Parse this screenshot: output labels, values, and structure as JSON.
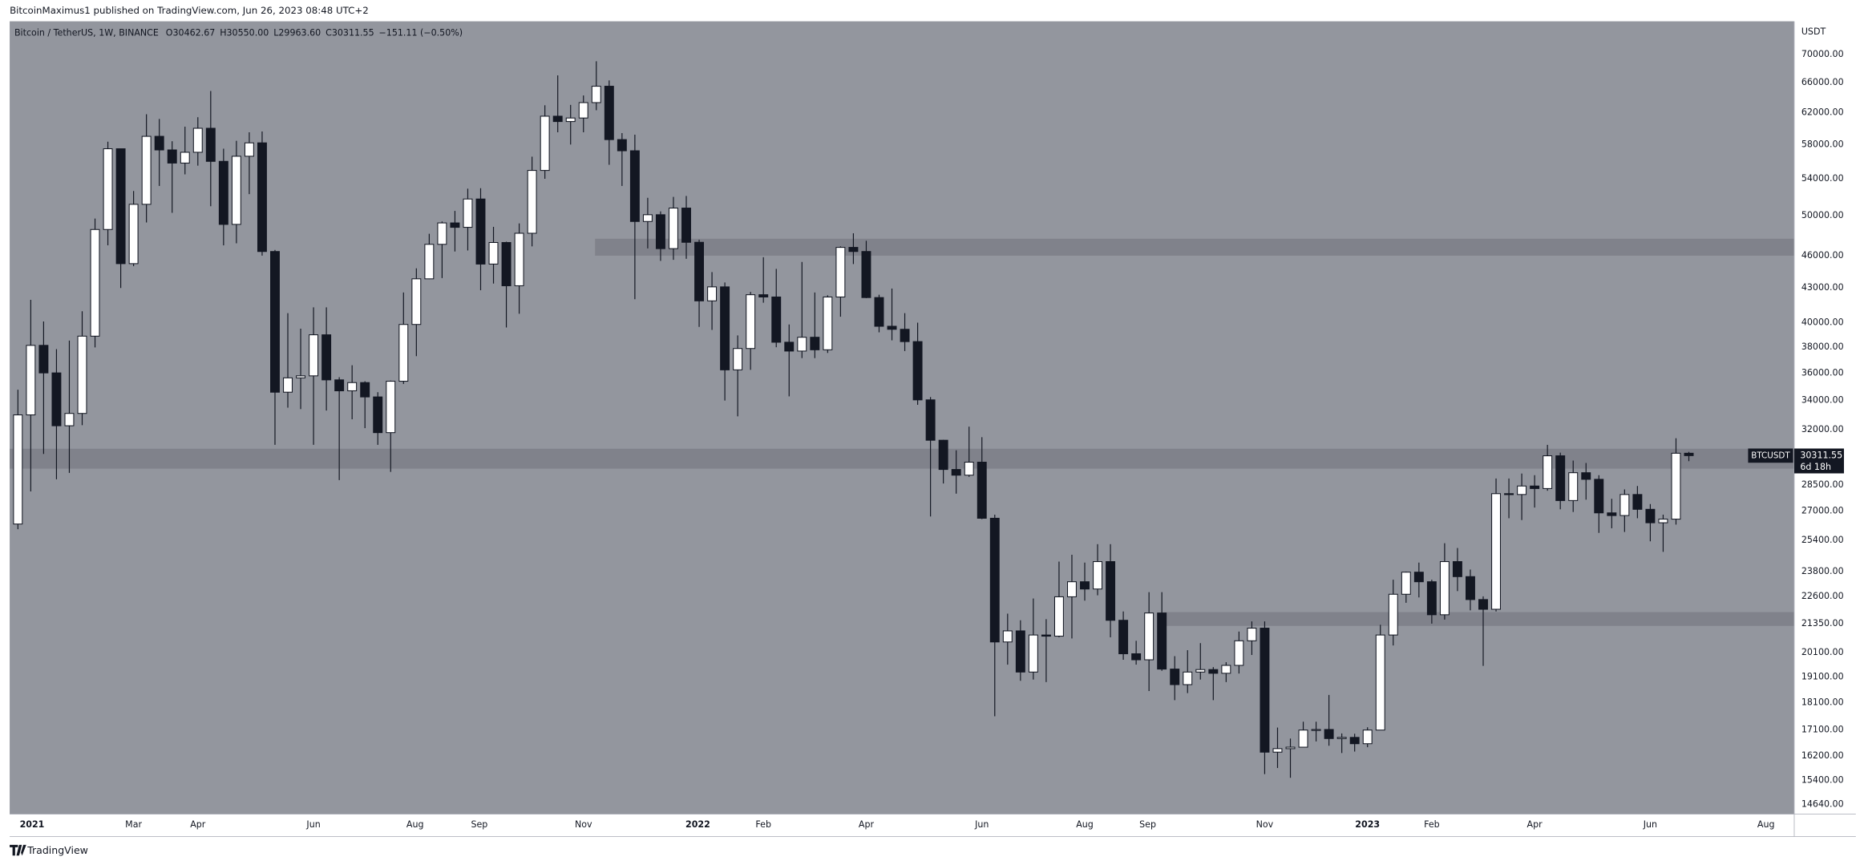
{
  "header": {
    "publisher": "BitcoinMaximus1 published on TradingView.com, Jun 26, 2023 08:48 UTC+2"
  },
  "footer": {
    "brand": "TradingView"
  },
  "chart_data": {
    "type": "candlestick",
    "title": "Bitcoin / TetherUS, 1W, BINANCE",
    "ohlc_legend": [
      {
        "key": "O",
        "value": "30462.67"
      },
      {
        "key": "H",
        "value": "30550.00"
      },
      {
        "key": "L",
        "value": "29963.60"
      },
      {
        "key": "C",
        "value": "30311.55"
      }
    ],
    "change": "−151.11 (−0.50%)",
    "y_unit": "USDT",
    "price_label": {
      "symbol": "BTCUSDT",
      "price": "30311.55",
      "countdown": "6d 18h"
    },
    "log_scale": true,
    "grid": false,
    "background": "#93969e",
    "up_color": "#ffffff",
    "down_color": "#131722",
    "zone_color": "#7c7f87",
    "xlim": [
      -0.64,
      138.2
    ],
    "ylim": [
      14350,
      75000
    ],
    "xticks": [
      {
        "value": 1.1,
        "label": "2021"
      },
      {
        "value": 9.0,
        "label": "Mar"
      },
      {
        "value": 14.0,
        "label": "Apr"
      },
      {
        "value": 23.0,
        "label": "Jun"
      },
      {
        "value": 30.9,
        "label": "Aug"
      },
      {
        "value": 35.9,
        "label": "Sep"
      },
      {
        "value": 44.0,
        "label": "Nov"
      },
      {
        "value": 52.9,
        "label": "2022"
      },
      {
        "value": 58.0,
        "label": "Feb"
      },
      {
        "value": 66.0,
        "label": "Apr"
      },
      {
        "value": 75.0,
        "label": "Jun"
      },
      {
        "value": 83.0,
        "label": "Aug"
      },
      {
        "value": 87.9,
        "label": "Sep"
      },
      {
        "value": 97.0,
        "label": "Nov"
      },
      {
        "value": 105.0,
        "label": "2023"
      },
      {
        "value": 110.0,
        "label": "Feb"
      },
      {
        "value": 118.0,
        "label": "Apr"
      },
      {
        "value": 127.0,
        "label": "Jun"
      },
      {
        "value": 136.0,
        "label": "Aug"
      }
    ],
    "yticks": [
      {
        "value": 70000,
        "label": "70000.00"
      },
      {
        "value": 66000,
        "label": "66000.00"
      },
      {
        "value": 62000,
        "label": "62000.00"
      },
      {
        "value": 58000,
        "label": "58000.00"
      },
      {
        "value": 54000,
        "label": "54000.00"
      },
      {
        "value": 50000,
        "label": "50000.00"
      },
      {
        "value": 46000,
        "label": "46000.00"
      },
      {
        "value": 43000,
        "label": "43000.00"
      },
      {
        "value": 40000,
        "label": "40000.00"
      },
      {
        "value": 38000,
        "label": "38000.00"
      },
      {
        "value": 36000,
        "label": "36000.00"
      },
      {
        "value": 34000,
        "label": "34000.00"
      },
      {
        "value": 32000,
        "label": "32000.00"
      },
      {
        "value": 28500,
        "label": "28500.00"
      },
      {
        "value": 27000,
        "label": "27000.00"
      },
      {
        "value": 25400,
        "label": "25400.00"
      },
      {
        "value": 23800,
        "label": "23800.00"
      },
      {
        "value": 22600,
        "label": "22600.00"
      },
      {
        "value": 21350,
        "label": "21350.00"
      },
      {
        "value": 20100,
        "label": "20100.00"
      },
      {
        "value": 19100,
        "label": "19100.00"
      },
      {
        "value": 18100,
        "label": "18100.00"
      },
      {
        "value": 17100,
        "label": "17100.00"
      },
      {
        "value": 16200,
        "label": "16200.00"
      },
      {
        "value": 15400,
        "label": "15400.00"
      },
      {
        "value": 14640,
        "label": "14640.00"
      }
    ],
    "zones": [
      {
        "start": 44.9,
        "low": 46000,
        "high": 47650
      },
      {
        "low": 29500,
        "high": 30750
      },
      {
        "start": 89.1,
        "low": 21250,
        "high": 21870
      }
    ],
    "open": [
      26281,
      33000,
      38150,
      36020,
      32260,
      33100,
      38890,
      48580,
      57490,
      45240,
      51200,
      59000,
      57350,
      55800,
      57070,
      60000,
      56000,
      49100,
      56600,
      58200,
      46400,
      34600,
      35650,
      35800,
      39000,
      35500,
      34700,
      35300,
      34260,
      31800,
      35400,
      39850,
      43830,
      47100,
      49250,
      48800,
      51770,
      45200,
      47280,
      43200,
      48200,
      54950,
      61530,
      60850,
      61300,
      63300,
      65500,
      58600,
      57250,
      49400,
      50100,
      46680,
      50800,
      47300,
      41860,
      43100,
      36250,
      37900,
      42400,
      42200,
      38400,
      37700,
      38800,
      37800,
      42200,
      46800,
      46400,
      42150,
      39700,
      39450,
      38450,
      34050,
      31300,
      29450,
      29100,
      29900,
      26600,
      20550,
      21030,
      19300,
      20850,
      20800,
      22580,
      23300,
      22950,
      24300,
      21500,
      20050,
      19800,
      21830,
      19420,
      18800,
      19300,
      19400,
      19250,
      19570,
      20600,
      21150,
      16330,
      16450,
      16500,
      17100,
      17120,
      16800,
      16840,
      16620,
      17100,
      20850,
      22700,
      23770,
      23300,
      21750,
      24300,
      23550,
      22450,
      22000,
      28000,
      27950,
      28450,
      28300,
      30300,
      27600,
      29250,
      28850,
      26900,
      26750,
      27950,
      27100,
      26350,
      26550,
      30462.67
    ],
    "high": [
      34778,
      41950,
      40100,
      37850,
      38530,
      40960,
      49700,
      58350,
      57500,
      52640,
      61780,
      61180,
      58400,
      60200,
      61400,
      64850,
      57500,
      58450,
      59500,
      59600,
      46550,
      40800,
      39500,
      41300,
      41300,
      35700,
      36600,
      35400,
      34600,
      35450,
      42600,
      44800,
      48150,
      49400,
      50500,
      52900,
      52950,
      48850,
      47360,
      49200,
      56550,
      62950,
      67000,
      63000,
      64250,
      69000,
      66300,
      59400,
      59200,
      51900,
      50450,
      52000,
      52100,
      47550,
      44450,
      43500,
      38950,
      42650,
      45850,
      44750,
      39850,
      45400,
      42600,
      42350,
      46900,
      48200,
      47450,
      42400,
      42950,
      40800,
      40000,
      34250,
      31330,
      30650,
      32200,
      31500,
      26800,
      21800,
      21500,
      22500,
      21550,
      24300,
      24650,
      24250,
      25200,
      25200,
      21900,
      20600,
      22800,
      22800,
      19950,
      20200,
      20500,
      19500,
      19700,
      21000,
      21450,
      21450,
      17190,
      16800,
      17400,
      17400,
      18400,
      16980,
      16970,
      17200,
      21300,
      23400,
      23800,
      24250,
      23400,
      25250,
      25000,
      23900,
      22600,
      28900,
      28900,
      29200,
      29100,
      31000,
      30500,
      30000,
      29850,
      29100,
      27700,
      28250,
      28450,
      27400,
      26800,
      31430,
      30550
    ],
    "low": [
      26000,
      28130,
      30420,
      28850,
      29240,
      32300,
      37990,
      47000,
      43000,
      45000,
      49300,
      53200,
      50300,
      54500,
      55500,
      51000,
      47000,
      47200,
      52300,
      46000,
      31000,
      33500,
      33400,
      31000,
      33300,
      28800,
      32700,
      32100,
      31000,
      29300,
      35200,
      37300,
      43800,
      43900,
      46400,
      46500,
      42800,
      43400,
      39600,
      40750,
      46900,
      54000,
      59500,
      58000,
      59500,
      62300,
      55600,
      53200,
      42000,
      46700,
      45500,
      45600,
      45700,
      39650,
      39400,
      34000,
      32900,
      36250,
      41700,
      38000,
      34300,
      37150,
      37150,
      37550,
      40500,
      45200,
      42100,
      39200,
      38550,
      37700,
      33700,
      26700,
      28600,
      28000,
      29000,
      26550,
      17600,
      19600,
      18950,
      19000,
      18900,
      20750,
      20700,
      22400,
      22650,
      20750,
      19800,
      19600,
      18550,
      19350,
      18200,
      18470,
      19000,
      18200,
      18900,
      19240,
      20000,
      15600,
      15800,
      15480,
      16500,
      16700,
      16550,
      16300,
      16350,
      16500,
      17100,
      20400,
      22300,
      22550,
      21350,
      21530,
      22850,
      21950,
      19550,
      21900,
      26600,
      26500,
      27200,
      28170,
      27100,
      26950,
      27650,
      25800,
      26050,
      25850,
      26600,
      25350,
      24800,
      26250,
      29963.6
    ],
    "close": [
      33000,
      38150,
      36020,
      32260,
      33100,
      38890,
      48580,
      57490,
      45240,
      51200,
      59000,
      57350,
      55800,
      57070,
      60000,
      56000,
      49100,
      56600,
      58200,
      46400,
      34600,
      35650,
      35800,
      39000,
      35500,
      34700,
      35300,
      34260,
      31800,
      35400,
      39850,
      43830,
      47100,
      49250,
      48800,
      51770,
      45200,
      47280,
      43200,
      48200,
      54950,
      61530,
      60850,
      61300,
      63300,
      65500,
      58600,
      57250,
      49400,
      50100,
      46680,
      50800,
      47300,
      41860,
      43100,
      36250,
      37900,
      42400,
      42200,
      38400,
      37700,
      38800,
      37800,
      42200,
      46800,
      46400,
      42150,
      39700,
      39450,
      38450,
      34050,
      31300,
      29450,
      29100,
      29900,
      26600,
      20550,
      21030,
      19300,
      20850,
      20800,
      22580,
      23300,
      22950,
      24300,
      21500,
      20050,
      19800,
      21830,
      19420,
      18800,
      19300,
      19400,
      19250,
      19570,
      20600,
      21150,
      16330,
      16450,
      16500,
      17100,
      17120,
      16800,
      16840,
      16620,
      17100,
      20850,
      22700,
      23770,
      23300,
      21750,
      24300,
      23550,
      22450,
      22000,
      28000,
      27950,
      28450,
      28300,
      30300,
      27600,
      29250,
      28850,
      26900,
      26750,
      27950,
      27100,
      26350,
      26550,
      30462.67,
      30311.55
    ]
  }
}
